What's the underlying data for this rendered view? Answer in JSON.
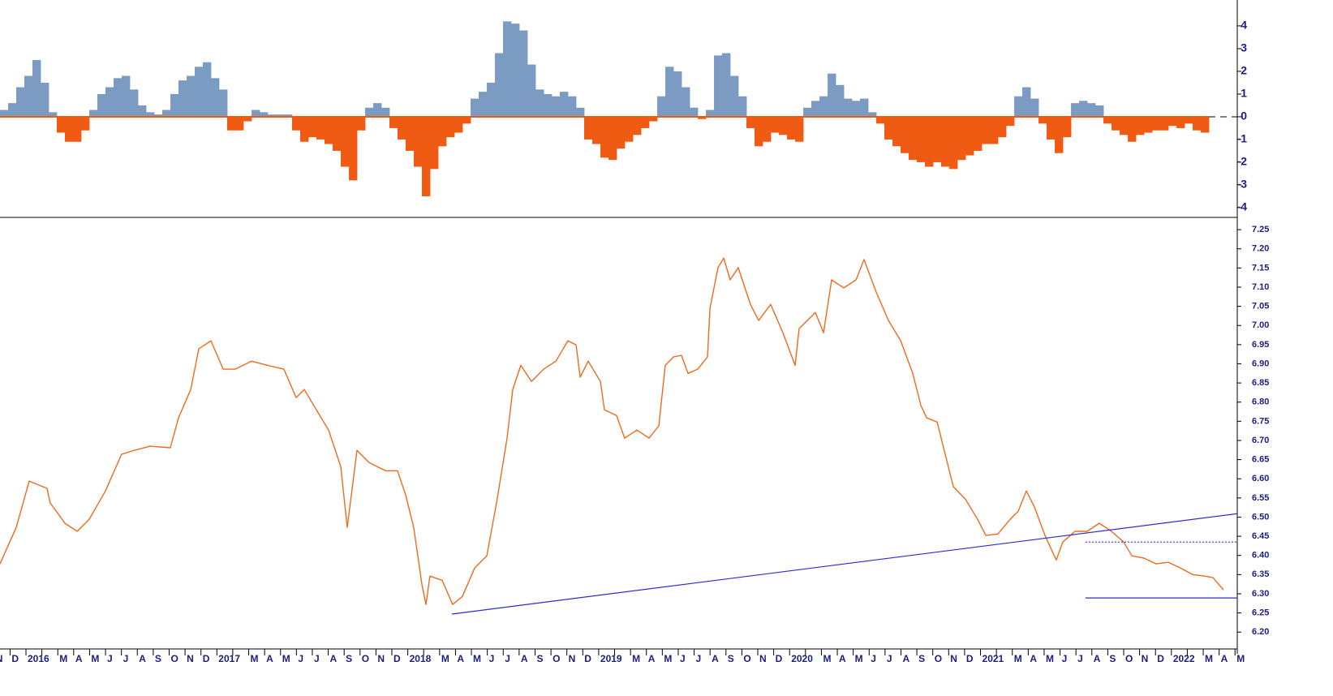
{
  "chart_data": [
    {
      "type": "bar",
      "xlim": [
        2015.864,
        2022.345
      ],
      "ylim": [
        -4.43,
        5.14
      ],
      "yticks": [
        -4,
        -3,
        -2,
        -1,
        0,
        1,
        2,
        3,
        4
      ],
      "positive_color": "#7b9bc3",
      "negative_color": "#ef5b12",
      "x": [
        2015.864,
        2015.9065,
        2015.949,
        2015.9915,
        2016.034,
        2016.0765,
        2016.119,
        2016.1615,
        2016.204,
        2016.2465,
        2016.289,
        2016.3315,
        2016.374,
        2016.4165,
        2016.459,
        2016.5015,
        2016.544,
        2016.5865,
        2016.629,
        2016.6715,
        2016.714,
        2016.7565,
        2016.799,
        2016.8415,
        2016.884,
        2016.9265,
        2016.969,
        2017.0115,
        2017.054,
        2017.0965,
        2017.139,
        2017.1815,
        2017.224,
        2017.2665,
        2017.309,
        2017.3515,
        2017.394,
        2017.4365,
        2017.479,
        2017.5215,
        2017.564,
        2017.6065,
        2017.649,
        2017.6915,
        2017.734,
        2017.7765,
        2017.819,
        2017.8615,
        2017.904,
        2017.9465,
        2017.989,
        2018.0315,
        2018.074,
        2018.1165,
        2018.159,
        2018.2015,
        2018.244,
        2018.2865,
        2018.329,
        2018.3715,
        2018.414,
        2018.4565,
        2018.499,
        2018.5415,
        2018.584,
        2018.6265,
        2018.669,
        2018.7115,
        2018.754,
        2018.7965,
        2018.839,
        2018.8815,
        2018.924,
        2018.9665,
        2019.009,
        2019.0515,
        2019.094,
        2019.1365,
        2019.179,
        2019.2215,
        2019.264,
        2019.3065,
        2019.349,
        2019.3915,
        2019.434,
        2019.4765,
        2019.519,
        2019.5615,
        2019.604,
        2019.6465,
        2019.689,
        2019.7315,
        2019.774,
        2019.8165,
        2019.859,
        2019.9015,
        2019.944,
        2019.9865,
        2020.029,
        2020.0715,
        2020.114,
        2020.1565,
        2020.199,
        2020.2415,
        2020.284,
        2020.3265,
        2020.369,
        2020.4115,
        2020.454,
        2020.4965,
        2020.539,
        2020.5815,
        2020.624,
        2020.6665,
        2020.709,
        2020.7515,
        2020.794,
        2020.8365,
        2020.879,
        2020.9215,
        2020.964,
        2021.0065,
        2021.049,
        2021.0915,
        2021.134,
        2021.1765,
        2021.219,
        2021.2615,
        2021.304,
        2021.3465,
        2021.389,
        2021.4315,
        2021.474,
        2021.5165,
        2021.559,
        2021.6015,
        2021.644,
        2021.6865,
        2021.729,
        2021.7715,
        2021.814,
        2021.8565,
        2021.899,
        2021.9415,
        2021.984,
        2022.0265,
        2022.069,
        2022.1115,
        2022.154
      ],
      "values": [
        0.3,
        0.6,
        1.3,
        1.8,
        2.5,
        1.5,
        0.2,
        -0.7,
        -1.1,
        -1.1,
        -0.6,
        0.3,
        1.0,
        1.3,
        1.7,
        1.8,
        1.2,
        0.5,
        0.2,
        0.1,
        0.3,
        1.0,
        1.6,
        1.8,
        2.2,
        2.4,
        1.7,
        1.2,
        -0.6,
        -0.6,
        -0.2,
        0.3,
        0.2,
        0.1,
        0.1,
        0.1,
        -0.6,
        -1.1,
        -0.9,
        -1.0,
        -1.2,
        -1.5,
        -2.2,
        -2.8,
        -0.6,
        0.4,
        0.6,
        0.4,
        -0.5,
        -1.0,
        -1.5,
        -2.2,
        -3.5,
        -2.3,
        -1.3,
        -0.9,
        -0.7,
        -0.3,
        0.8,
        1.1,
        1.5,
        2.8,
        4.2,
        4.1,
        3.8,
        2.3,
        1.2,
        1.0,
        0.9,
        1.1,
        0.9,
        0.4,
        -1.0,
        -1.2,
        -1.8,
        -1.9,
        -1.4,
        -1.1,
        -0.8,
        -0.5,
        -0.2,
        0.9,
        2.2,
        2.0,
        1.3,
        0.4,
        -0.1,
        0.3,
        2.7,
        2.8,
        1.8,
        0.9,
        -0.5,
        -1.3,
        -1.1,
        -0.7,
        -0.8,
        -1.0,
        -1.1,
        0.4,
        0.7,
        0.9,
        1.9,
        1.4,
        0.8,
        0.7,
        0.8,
        0.2,
        -0.3,
        -1.0,
        -1.3,
        -1.6,
        -1.9,
        -2.0,
        -2.2,
        -2.0,
        -2.2,
        -2.3,
        -1.9,
        -1.7,
        -1.5,
        -1.2,
        -1.2,
        -0.9,
        -0.4,
        0.9,
        1.3,
        0.8,
        -0.3,
        -1.0,
        -1.6,
        -0.9,
        0.6,
        0.7,
        0.6,
        0.5,
        -0.3,
        -0.6,
        -0.8,
        -1.1,
        -0.8,
        -0.7,
        -0.6,
        -0.6,
        -0.4,
        -0.5,
        -0.3,
        -0.6,
        -0.7
      ]
    },
    {
      "type": "line",
      "color": "#ee6a1c",
      "xlim": [
        2015.864,
        2022.345
      ],
      "ylim": [
        6.156,
        7.282
      ],
      "yticks": [
        {
          "value": 6.2,
          "label": "6.20"
        },
        6.25,
        {
          "value": 6.3,
          "label": "6.30"
        },
        6.35,
        {
          "value": 6.4,
          "label": "6.40"
        },
        6.45,
        {
          "value": 6.5,
          "label": "6.50"
        },
        6.55,
        {
          "value": 6.6,
          "label": "6.60"
        },
        6.65,
        {
          "value": 6.7,
          "label": "6.70"
        },
        6.75,
        {
          "value": 6.8,
          "label": "6.80"
        },
        6.85,
        {
          "value": 6.9,
          "label": "6.90"
        },
        6.95,
        {
          "value": 7,
          "label": "7.00"
        },
        7.05,
        {
          "value": 7.1,
          "label": "7.10"
        },
        7.15,
        {
          "value": 7.2,
          "label": "7.20"
        },
        7.25
      ],
      "xticks": [
        {
          "value": 2015.8333,
          "label": "N"
        },
        {
          "value": 2015.9167,
          "label": "D"
        },
        2016,
        {
          "value": 2016.0833,
          "label": null
        },
        {
          "value": 2016.1667,
          "label": "M"
        },
        {
          "value": 2016.25,
          "label": "A"
        },
        {
          "value": 2016.3333,
          "label": "M"
        },
        {
          "value": 2016.4167,
          "label": "J"
        },
        {
          "value": 2016.5,
          "label": "J"
        },
        {
          "value": 2016.5833,
          "label": "A"
        },
        {
          "value": 2016.6667,
          "label": "S"
        },
        {
          "value": 2016.75,
          "label": "O"
        },
        {
          "value": 2016.8333,
          "label": "N"
        },
        {
          "value": 2016.9167,
          "label": "D"
        },
        2017,
        {
          "value": 2017.0833,
          "label": null
        },
        {
          "value": 2017.1667,
          "label": "M"
        },
        {
          "value": 2017.25,
          "label": "A"
        },
        {
          "value": 2017.3333,
          "label": "M"
        },
        {
          "value": 2017.4167,
          "label": "J"
        },
        {
          "value": 2017.5,
          "label": "J"
        },
        {
          "value": 2017.5833,
          "label": "A"
        },
        {
          "value": 2017.6667,
          "label": "S"
        },
        {
          "value": 2017.75,
          "label": "O"
        },
        {
          "value": 2017.8333,
          "label": "N"
        },
        {
          "value": 2017.9167,
          "label": "D"
        },
        2018,
        {
          "value": 2018.0833,
          "label": null
        },
        {
          "value": 2018.1667,
          "label": "M"
        },
        {
          "value": 2018.25,
          "label": "A"
        },
        {
          "value": 2018.3333,
          "label": "M"
        },
        {
          "value": 2018.4167,
          "label": "J"
        },
        {
          "value": 2018.5,
          "label": "J"
        },
        {
          "value": 2018.5833,
          "label": "A"
        },
        {
          "value": 2018.6667,
          "label": "S"
        },
        {
          "value": 2018.75,
          "label": "O"
        },
        {
          "value": 2018.8333,
          "label": "N"
        },
        {
          "value": 2018.9167,
          "label": "D"
        },
        2019,
        {
          "value": 2019.0833,
          "label": null
        },
        {
          "value": 2019.1667,
          "label": "M"
        },
        {
          "value": 2019.25,
          "label": "A"
        },
        {
          "value": 2019.3333,
          "label": "M"
        },
        {
          "value": 2019.4167,
          "label": "J"
        },
        {
          "value": 2019.5,
          "label": "J"
        },
        {
          "value": 2019.5833,
          "label": "A"
        },
        {
          "value": 2019.6667,
          "label": "S"
        },
        {
          "value": 2019.75,
          "label": "O"
        },
        {
          "value": 2019.8333,
          "label": "N"
        },
        {
          "value": 2019.9167,
          "label": "D"
        },
        2020,
        {
          "value": 2020.0833,
          "label": null
        },
        {
          "value": 2020.1667,
          "label": "M"
        },
        {
          "value": 2020.25,
          "label": "A"
        },
        {
          "value": 2020.3333,
          "label": "M"
        },
        {
          "value": 2020.4167,
          "label": "J"
        },
        {
          "value": 2020.5,
          "label": "J"
        },
        {
          "value": 2020.5833,
          "label": "A"
        },
        {
          "value": 2020.6667,
          "label": "S"
        },
        {
          "value": 2020.75,
          "label": "O"
        },
        {
          "value": 2020.8333,
          "label": "N"
        },
        {
          "value": 2020.9167,
          "label": "D"
        },
        2021,
        {
          "value": 2021.0833,
          "label": null
        },
        {
          "value": 2021.1667,
          "label": "M"
        },
        {
          "value": 2021.25,
          "label": "A"
        },
        {
          "value": 2021.3333,
          "label": "M"
        },
        {
          "value": 2021.4167,
          "label": "J"
        },
        {
          "value": 2021.5,
          "label": "J"
        },
        {
          "value": 2021.5833,
          "label": "A"
        },
        {
          "value": 2021.6667,
          "label": "S"
        },
        {
          "value": 2021.75,
          "label": "O"
        },
        {
          "value": 2021.8333,
          "label": "N"
        },
        {
          "value": 2021.9167,
          "label": "D"
        },
        2022,
        {
          "value": 2022.0833,
          "label": null
        },
        {
          "value": 2022.1667,
          "label": "M"
        },
        {
          "value": 2022.25,
          "label": "A"
        },
        {
          "value": 2022.3333,
          "label": "M"
        }
      ],
      "x": [
        2015.864,
        2015.949,
        2016.017,
        2016.11,
        2016.127,
        2016.204,
        2016.268,
        2016.331,
        2016.416,
        2016.501,
        2016.565,
        2016.65,
        2016.756,
        2016.799,
        2016.863,
        2016.905,
        2016.969,
        2017.033,
        2017.096,
        2017.181,
        2017.266,
        2017.351,
        2017.415,
        2017.458,
        2017.521,
        2017.585,
        2017.649,
        2017.683,
        2017.734,
        2017.798,
        2017.883,
        2017.946,
        2017.989,
        2018.031,
        2018.074,
        2018.095,
        2018.116,
        2018.18,
        2018.235,
        2018.286,
        2018.35,
        2018.414,
        2018.465,
        2018.52,
        2018.55,
        2018.592,
        2018.648,
        2018.712,
        2018.776,
        2018.839,
        2018.882,
        2018.903,
        2018.945,
        2019.009,
        2019.03,
        2019.094,
        2019.136,
        2019.2,
        2019.264,
        2019.315,
        2019.349,
        2019.392,
        2019.434,
        2019.468,
        2019.519,
        2019.57,
        2019.583,
        2019.625,
        2019.655,
        2019.689,
        2019.731,
        2019.795,
        2019.838,
        2019.901,
        2019.965,
        2020.029,
        2020.05,
        2020.135,
        2020.178,
        2020.22,
        2020.284,
        2020.348,
        2020.39,
        2020.454,
        2020.518,
        2020.582,
        2020.645,
        2020.688,
        2020.718,
        2020.773,
        2020.815,
        2020.858,
        2020.921,
        2020.985,
        2021.028,
        2021.091,
        2021.155,
        2021.197,
        2021.24,
        2021.283,
        2021.338,
        2021.397,
        2021.431,
        2021.495,
        2021.559,
        2021.622,
        2021.686,
        2021.75,
        2021.793,
        2021.856,
        2021.92,
        2021.984,
        2022.048,
        2022.111,
        2022.175,
        2022.218,
        2022.273
      ],
      "values": [
        6.378,
        6.473,
        6.594,
        6.575,
        6.537,
        6.484,
        6.463,
        6.494,
        6.568,
        6.664,
        6.674,
        6.685,
        6.681,
        6.759,
        6.833,
        6.939,
        6.96,
        6.886,
        6.886,
        6.907,
        6.896,
        6.886,
        6.812,
        6.833,
        6.78,
        6.727,
        6.632,
        6.473,
        6.674,
        6.642,
        6.621,
        6.621,
        6.558,
        6.473,
        6.325,
        6.272,
        6.346,
        6.335,
        6.272,
        6.293,
        6.367,
        6.399,
        6.537,
        6.706,
        6.833,
        6.896,
        6.854,
        6.886,
        6.907,
        6.96,
        6.949,
        6.865,
        6.907,
        6.854,
        6.78,
        6.765,
        6.706,
        6.727,
        6.706,
        6.738,
        6.896,
        6.918,
        6.922,
        6.875,
        6.886,
        6.918,
        7.045,
        7.151,
        7.176,
        7.119,
        7.151,
        7.055,
        7.013,
        7.055,
        6.981,
        6.896,
        6.992,
        7.034,
        6.981,
        7.119,
        7.098,
        7.119,
        7.172,
        7.087,
        7.013,
        6.96,
        6.875,
        6.791,
        6.759,
        6.748,
        6.664,
        6.579,
        6.547,
        6.494,
        6.452,
        6.456,
        6.494,
        6.515,
        6.568,
        6.526,
        6.452,
        6.388,
        6.435,
        6.463,
        6.463,
        6.484,
        6.463,
        6.435,
        6.399,
        6.393,
        6.378,
        6.382,
        6.367,
        6.35,
        6.346,
        6.342,
        6.31
      ],
      "lines": [
        {
          "x": [
            2018.231,
            2022.345
          ],
          "y": [
            6.247,
            6.509
          ],
          "color": "#2b2bd0",
          "style": "solid"
        },
        {
          "x": [
            2021.55,
            2022.345
          ],
          "y": [
            6.435,
            6.435
          ],
          "color": "#2b2bd0",
          "style": "dotted"
        },
        {
          "x": [
            2021.55,
            2022.345
          ],
          "y": [
            6.289,
            6.289
          ],
          "color": "#2b2bd0",
          "style": "solid"
        }
      ]
    }
  ]
}
